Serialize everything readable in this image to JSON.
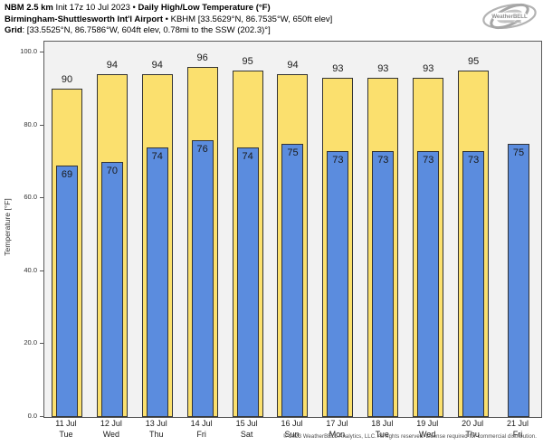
{
  "header": {
    "line1": [
      {
        "text": "NBM 2.5 km",
        "bold": true
      },
      {
        "text": " Init 17z 10 Jul 2023 • ",
        "bold": false
      },
      {
        "text": "Daily High/Low Temperature (°F)",
        "bold": true
      }
    ],
    "line2": [
      {
        "text": "Birmingham-Shuttlesworth Int'l Airport",
        "bold": true
      },
      {
        "text": " • KBHM [33.5629°N, 86.7535°W, 650ft elev]",
        "bold": false
      }
    ],
    "line3": [
      {
        "text": "Grid",
        "bold": true
      },
      {
        "text": ": [33.5525°N, 86.7586°W, 604ft elev, 0.78mi to the SSW (202.3)°]",
        "bold": false
      }
    ]
  },
  "logo": {
    "text": "WeatherBELL"
  },
  "chart_data": {
    "type": "bar",
    "title": "Daily High/Low Temperature (°F)",
    "ylabel": "Temperature [°F]",
    "ylim": [
      0,
      103
    ],
    "ytick_values": [
      0,
      20,
      40,
      60,
      80,
      100
    ],
    "ytick_labels": [
      "0.0",
      "20.0",
      "40.0",
      "60.0",
      "80.0",
      "100.0"
    ],
    "grid": false,
    "legend": "none",
    "categories": [
      {
        "date": "11 Jul",
        "day": "Tue"
      },
      {
        "date": "12 Jul",
        "day": "Wed"
      },
      {
        "date": "13 Jul",
        "day": "Thu"
      },
      {
        "date": "14 Jul",
        "day": "Fri"
      },
      {
        "date": "15 Jul",
        "day": "Sat"
      },
      {
        "date": "16 Jul",
        "day": "Sun"
      },
      {
        "date": "17 Jul",
        "day": "Mon"
      },
      {
        "date": "18 Jul",
        "day": "Tue"
      },
      {
        "date": "19 Jul",
        "day": "Wed"
      },
      {
        "date": "20 Jul",
        "day": "Thu"
      },
      {
        "date": "21 Jul",
        "day": "Fri"
      }
    ],
    "series": [
      {
        "name": "Daily High",
        "color": "#fbe06e",
        "values": [
          90,
          94,
          94,
          96,
          95,
          94,
          93,
          93,
          93,
          95,
          null
        ]
      },
      {
        "name": "Daily Low",
        "color": "#5b8cde",
        "values": [
          69,
          70,
          74,
          76,
          74,
          75,
          73,
          73,
          73,
          73,
          75
        ]
      }
    ]
  },
  "colors": {
    "plot_background": "#f2f2f2",
    "bar_edge": "#333333",
    "spine": "#5a5a5a",
    "high_bar": "#fbe06e",
    "low_bar": "#5b8cde"
  },
  "footer": {
    "copyright": "© 2023 WeatherBELL Analytics, LLC. All rights reserved. License required for commercial distribution."
  }
}
